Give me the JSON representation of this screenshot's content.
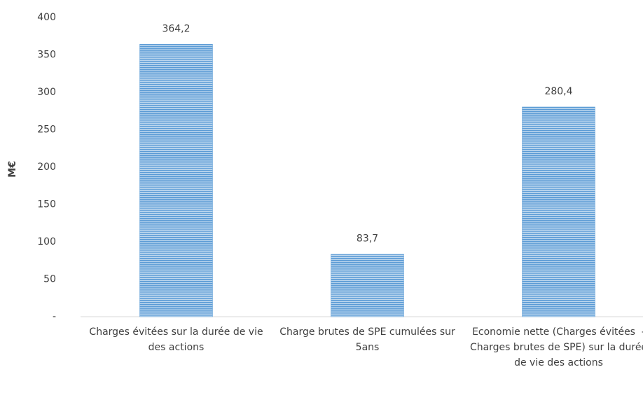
{
  "chart_data": {
    "type": "bar",
    "y_axis_label": "M€",
    "categories": [
      "Charges évitées sur la durée de vie des actions",
      "Charge brutes de SPE cumulées sur 5ans",
      "Economie nette (Charges évitées  - Charges brutes de SPE) sur la durée de vie des actions"
    ],
    "values": [
      364.2,
      83.7,
      280.4
    ],
    "value_labels": [
      "364,2",
      "83,7",
      "280,4"
    ],
    "color": "#5b9bd5",
    "ylim": [
      0,
      400
    ],
    "yticks": [
      {
        "value": 0,
        "label": "-"
      },
      50,
      100,
      150,
      200,
      250,
      300,
      350,
      400
    ],
    "grid": false
  }
}
